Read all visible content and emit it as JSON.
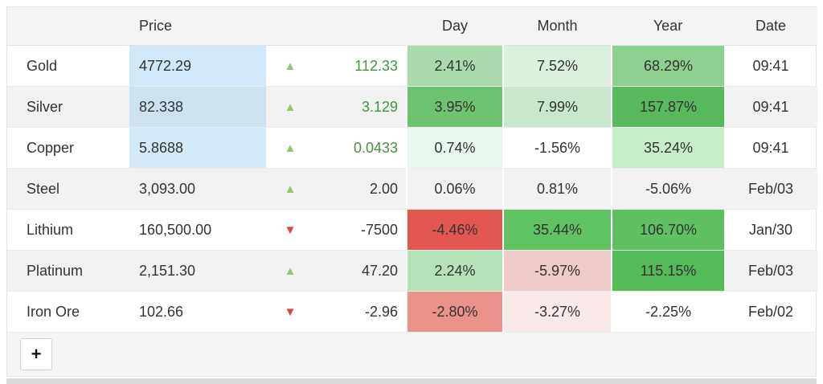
{
  "table": {
    "headers": {
      "price": "Price",
      "day": "Day",
      "month": "Month",
      "year": "Year",
      "date": "Date"
    },
    "accent_colors": {
      "up_arrow": "#90c86e",
      "down_arrow": "#d6473f",
      "positive_text": "#44953f",
      "price_highlight_blue": "#d2e8f8"
    },
    "rows": [
      {
        "name": "Gold",
        "price": "4772.29",
        "price_bg": "#d2e8f8",
        "arrow": "▲",
        "arrow_color": "#90c86e",
        "change": "112.33",
        "change_color": "#44953f",
        "day": {
          "text": "2.41%",
          "bg": "#a9dbae"
        },
        "month": {
          "text": "7.52%",
          "bg": "#dbf0dd"
        },
        "year": {
          "text": "68.29%",
          "bg": "#8cd190"
        },
        "date": "09:41"
      },
      {
        "name": "Silver",
        "price": "82.338",
        "price_bg": "#cde1ef",
        "arrow": "▲",
        "arrow_color": "#90c86e",
        "change": "3.129",
        "change_color": "#44953f",
        "day": {
          "text": "3.95%",
          "bg": "#6dc370"
        },
        "month": {
          "text": "7.99%",
          "bg": "#c9e7cd"
        },
        "year": {
          "text": "157.87%",
          "bg": "#57b95c"
        },
        "date": "09:41"
      },
      {
        "name": "Copper",
        "price": "5.8688",
        "price_bg": "#d5eaf8",
        "arrow": "▲",
        "arrow_color": "#90c86e",
        "change": "0.0433",
        "change_color": "#44953f",
        "day": {
          "text": "0.74%",
          "bg": "#e9f8ec"
        },
        "month": {
          "text": "-1.56%",
          "bg": ""
        },
        "year": {
          "text": "35.24%",
          "bg": "#c8ecca"
        },
        "date": "09:41"
      },
      {
        "name": "Steel",
        "price": "3,093.00",
        "price_bg": "",
        "arrow": "▲",
        "arrow_color": "#90c86e",
        "change": "2.00",
        "change_color": "#333333",
        "day": {
          "text": "0.06%",
          "bg": ""
        },
        "month": {
          "text": "0.81%",
          "bg": ""
        },
        "year": {
          "text": "-5.06%",
          "bg": ""
        },
        "date": "Feb/03"
      },
      {
        "name": "Lithium",
        "price": "160,500.00",
        "price_bg": "",
        "arrow": "▼",
        "arrow_color": "#d6473f",
        "change": "-7500",
        "change_color": "#333333",
        "day": {
          "text": "-4.46%",
          "bg": "#e2574f"
        },
        "month": {
          "text": "35.44%",
          "bg": "#5ec360"
        },
        "year": {
          "text": "106.70%",
          "bg": "#5fc062"
        },
        "date": "Jan/30"
      },
      {
        "name": "Platinum",
        "price": "2,151.30",
        "price_bg": "",
        "arrow": "▲",
        "arrow_color": "#90c86e",
        "change": "47.20",
        "change_color": "#333333",
        "day": {
          "text": "2.24%",
          "bg": "#b6e2ba"
        },
        "month": {
          "text": "-5.97%",
          "bg": "#eeccca"
        },
        "year": {
          "text": "115.15%",
          "bg": "#55bb58"
        },
        "date": "Feb/03"
      },
      {
        "name": "Iron Ore",
        "price": "102.66",
        "price_bg": "",
        "arrow": "▼",
        "arrow_color": "#d6473f",
        "change": "-2.96",
        "change_color": "#333333",
        "day": {
          "text": "-2.80%",
          "bg": "#ec928d"
        },
        "month": {
          "text": "-3.27%",
          "bg": "#fae9e9"
        },
        "year": {
          "text": "-2.25%",
          "bg": ""
        },
        "date": "Feb/02"
      }
    ],
    "add_button_label": "+"
  }
}
